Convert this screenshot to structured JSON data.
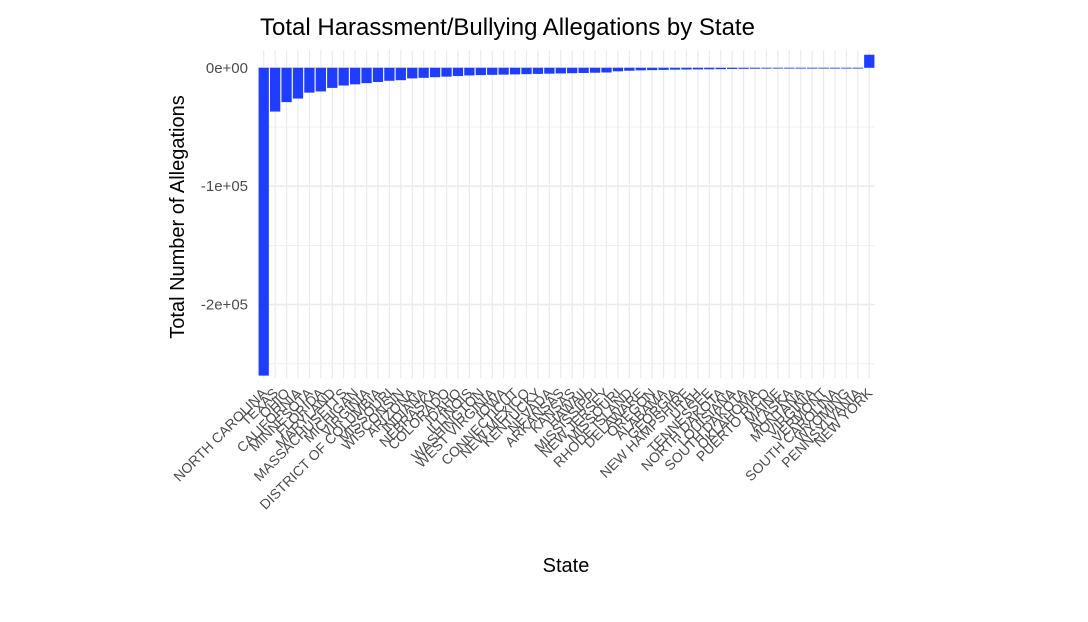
{
  "chart_data": {
    "type": "bar",
    "title": "Total Harassment/Bullying Allegations by State",
    "xlabel": "State",
    "ylabel": "Total Number of Allegations",
    "ylim": [
      -262000,
      15000
    ],
    "yticks": [
      {
        "value": 0,
        "label": "0e+00"
      },
      {
        "value": -100000,
        "label": "-1e+05"
      },
      {
        "value": -200000,
        "label": "-2e+05"
      }
    ],
    "grid": true,
    "bar_color": "#1f3dff",
    "grid_color": "#ebebeb",
    "categories": [
      "NORTH CAROLINA",
      "TEXAS",
      "OHIO",
      "CALIFORNIA",
      "MINNESOTA",
      "FLORIDA",
      "MARYLAND",
      "MASSACHUSETTS",
      "MICHIGAN",
      "VIRGINIA",
      "DISTRICT OF COLUMBIA",
      "MISSOURI",
      "WISCONSIN",
      "ARIZONA",
      "INDIANA",
      "NEBRASKA",
      "COLORADO",
      "IDAHO",
      "ILLINOIS",
      "WASHINGTON",
      "WEST VIRGINIA",
      "IOWA",
      "CONNECTICUT",
      "NEW MEXICO",
      "KENTUCKY",
      "NEVADA",
      "ARKANSAS",
      "KANSAS",
      "HAWAII",
      "MISSISSIPPI",
      "NEW JERSEY",
      "MISSOURI",
      "RHODE ISLAND",
      "DELAWARE",
      "OREGON",
      "ALABAMA",
      "GEORGIA",
      "NEW HAMPSHIRE",
      "UTAH",
      "TENNESSEE",
      "NORTH DAKOTA",
      "LOUISIANA",
      "SOUTH DAKOTA",
      "OKLAHOMA",
      "PUERTO RICO",
      "MAINE",
      "ALASKA",
      "MONTANA",
      "VIRGINIA",
      "VERMONT",
      "SOUTH CAROLINA",
      "WYOMING",
      "PENNSYLVANIA",
      "NEW YORK"
    ],
    "values": [
      -260000,
      -37000,
      -29000,
      -26000,
      -21000,
      -20000,
      -17000,
      -15000,
      -14000,
      -13000,
      -12000,
      -11000,
      -10500,
      -9000,
      -8500,
      -8000,
      -7500,
      -7000,
      -6500,
      -6200,
      -6000,
      -5800,
      -5600,
      -5400,
      -5200,
      -5000,
      -4800,
      -4600,
      -4400,
      -4200,
      -4000,
      -3000,
      -2500,
      -2200,
      -2000,
      -1800,
      -1600,
      -1500,
      -1400,
      -1300,
      -1200,
      -1000,
      -900,
      -800,
      -700,
      -600,
      -500,
      -400,
      -300,
      -300,
      -200,
      -200,
      -100,
      11000
    ]
  }
}
